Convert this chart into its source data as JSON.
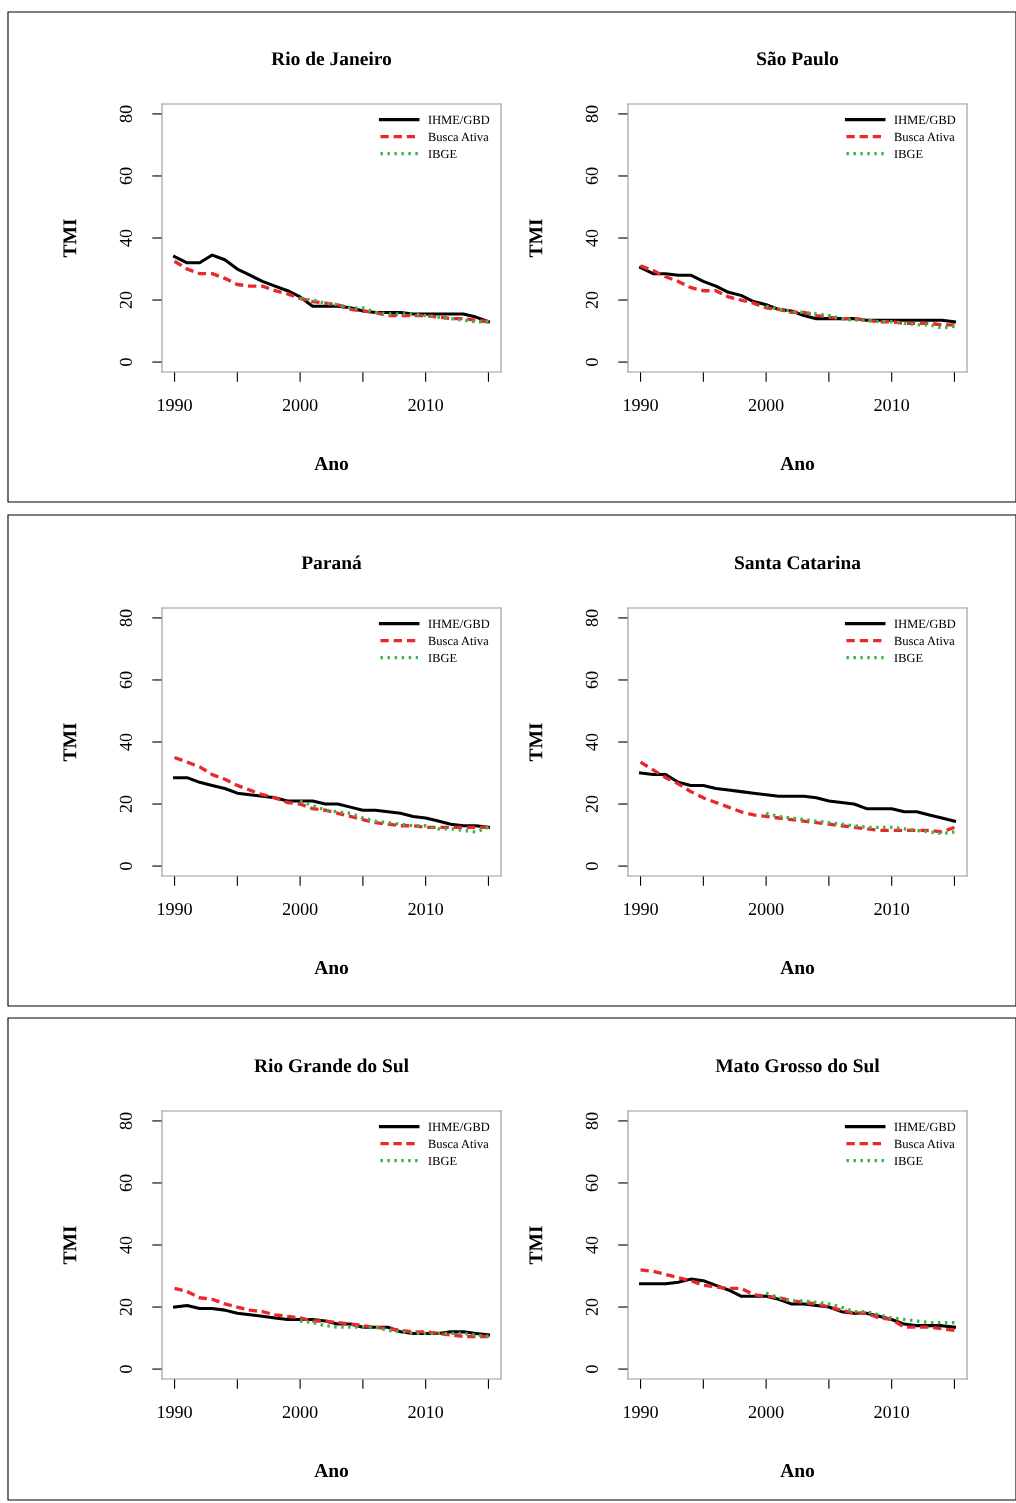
{
  "chart_data": [
    {
      "type": "line",
      "title": "Rio de Janeiro",
      "xlabel": "Ano",
      "ylabel": "TMI",
      "xlim": [
        1989,
        2016
      ],
      "ylim": [
        -3.2,
        83.2
      ],
      "xticks": [
        1990,
        {
          "value": 1995,
          "label": null
        },
        2000,
        {
          "value": 2005,
          "label": null
        },
        2010,
        {
          "value": 2015,
          "label": null
        }
      ],
      "yticks": [
        0,
        20,
        40,
        60,
        80
      ],
      "legend": "top right",
      "grid": false,
      "x": [
        1990,
        1991,
        1992,
        1993,
        1994,
        1995,
        1996,
        1997,
        1998,
        1999,
        2000,
        2001,
        2002,
        2003,
        2004,
        2005,
        2006,
        2007,
        2008,
        2009,
        2010,
        2011,
        2012,
        2013,
        2014,
        2015
      ],
      "series": [
        {
          "name": "IHME/GBD",
          "color": "#000000",
          "line_style": "solid",
          "values": [
            34,
            32,
            32,
            34.5,
            33,
            30,
            28,
            26,
            24.5,
            23,
            21,
            18,
            18,
            18,
            17.5,
            16.5,
            16,
            16,
            16,
            15.5,
            15.5,
            15.5,
            15.5,
            15.5,
            14.5,
            13
          ]
        },
        {
          "name": "Busca Ativa",
          "color": "#e8282a",
          "line_style": "dashed",
          "values": [
            32.5,
            30,
            28.5,
            28.5,
            27,
            25,
            24.5,
            24.5,
            23,
            22,
            20.5,
            19.5,
            19,
            18.5,
            17,
            16.5,
            16,
            15,
            15,
            15,
            15,
            14.5,
            14,
            14,
            13.5,
            13
          ]
        },
        {
          "name": "IBGE",
          "color": "#3cb44b",
          "line_style": "dotted",
          "x": [
            2000,
            2001,
            2002,
            2003,
            2004,
            2005,
            2006,
            2007,
            2008,
            2009,
            2010,
            2011,
            2012,
            2013,
            2014,
            2015
          ],
          "values": [
            20.5,
            20,
            19,
            18.5,
            17.5,
            17.5,
            16,
            15.5,
            15.5,
            15.5,
            15,
            14.5,
            14,
            13.5,
            13,
            13
          ]
        }
      ]
    },
    {
      "type": "line",
      "title": "São Paulo",
      "xlabel": "Ano",
      "ylabel": "TMI",
      "xlim": [
        1989,
        2016
      ],
      "ylim": [
        -3.2,
        83.2
      ],
      "xticks": [
        1990,
        {
          "value": 1995,
          "label": null
        },
        2000,
        {
          "value": 2005,
          "label": null
        },
        2010,
        {
          "value": 2015,
          "label": null
        }
      ],
      "yticks": [
        0,
        20,
        40,
        60,
        80
      ],
      "legend": "top right",
      "grid": false,
      "x": [
        1990,
        1991,
        1992,
        1993,
        1994,
        1995,
        1996,
        1997,
        1998,
        1999,
        2000,
        2001,
        2002,
        2003,
        2004,
        2005,
        2006,
        2007,
        2008,
        2009,
        2010,
        2011,
        2012,
        2013,
        2014,
        2015
      ],
      "series": [
        {
          "name": "IHME/GBD",
          "color": "#000000",
          "line_style": "solid",
          "values": [
            30.5,
            28.5,
            28.5,
            28,
            28,
            26,
            24.5,
            22.5,
            21.5,
            19.5,
            18.5,
            17,
            16.5,
            15,
            14,
            14,
            14,
            14,
            13.5,
            13.5,
            13.5,
            13.5,
            13.5,
            13.5,
            13.5,
            13
          ]
        },
        {
          "name": "Busca Ativa",
          "color": "#e8282a",
          "line_style": "dashed",
          "values": [
            31,
            29.5,
            27.5,
            26,
            24,
            23,
            23,
            21,
            20,
            19,
            17.5,
            17,
            16,
            16,
            15,
            14.5,
            14,
            14,
            13.5,
            13,
            13,
            12.5,
            12.5,
            12.5,
            12,
            12
          ]
        },
        {
          "name": "IBGE",
          "color": "#3cb44b",
          "line_style": "dotted",
          "x": [
            2000,
            2001,
            2002,
            2003,
            2004,
            2005,
            2006,
            2007,
            2008,
            2009,
            2010,
            2011,
            2012,
            2013,
            2014,
            2015
          ],
          "values": [
            18,
            17,
            16.5,
            16,
            15.5,
            15,
            14,
            13.5,
            13.5,
            13,
            13,
            12.5,
            12,
            12,
            11,
            11.5
          ]
        }
      ]
    },
    {
      "type": "line",
      "title": "Paraná",
      "xlabel": "Ano",
      "ylabel": "TMI",
      "xlim": [
        1989,
        2016
      ],
      "ylim": [
        -3.2,
        83.2
      ],
      "xticks": [
        1990,
        {
          "value": 1995,
          "label": null
        },
        2000,
        {
          "value": 2005,
          "label": null
        },
        2010,
        {
          "value": 2015,
          "label": null
        }
      ],
      "yticks": [
        0,
        20,
        40,
        60,
        80
      ],
      "legend": "top right",
      "grid": false,
      "x": [
        1990,
        1991,
        1992,
        1993,
        1994,
        1995,
        1996,
        1997,
        1998,
        1999,
        2000,
        2001,
        2002,
        2003,
        2004,
        2005,
        2006,
        2007,
        2008,
        2009,
        2010,
        2011,
        2012,
        2013,
        2014,
        2015
      ],
      "series": [
        {
          "name": "IHME/GBD",
          "color": "#000000",
          "line_style": "solid",
          "values": [
            28.5,
            28.5,
            27,
            26,
            25,
            23.5,
            23,
            22.5,
            22,
            21,
            21,
            21,
            20,
            20,
            19,
            18,
            18,
            17.5,
            17,
            16,
            15.5,
            14.5,
            13.5,
            13,
            13,
            12.5
          ]
        },
        {
          "name": "Busca Ativa",
          "color": "#e8282a",
          "line_style": "dashed",
          "values": [
            35,
            33.5,
            32,
            29.5,
            28,
            26,
            24.5,
            23,
            22,
            20.5,
            20,
            18.5,
            18,
            17,
            16,
            15,
            14,
            13.5,
            13,
            13,
            12.5,
            12.5,
            12.5,
            12.5,
            12.5,
            12.5
          ]
        },
        {
          "name": "IBGE",
          "color": "#3cb44b",
          "line_style": "dotted",
          "x": [
            2000,
            2001,
            2002,
            2003,
            2004,
            2005,
            2006,
            2007,
            2008,
            2009,
            2010,
            2011,
            2012,
            2013,
            2014,
            2015
          ],
          "values": [
            21,
            19.5,
            18,
            17.5,
            17,
            15.5,
            14.5,
            14,
            13.5,
            13,
            13,
            12,
            12,
            11.5,
            11,
            12.5
          ]
        }
      ]
    },
    {
      "type": "line",
      "title": "Santa Catarina",
      "xlabel": "Ano",
      "ylabel": "TMI",
      "xlim": [
        1989,
        2016
      ],
      "ylim": [
        -3.2,
        83.2
      ],
      "xticks": [
        1990,
        {
          "value": 1995,
          "label": null
        },
        2000,
        {
          "value": 2005,
          "label": null
        },
        2010,
        {
          "value": 2015,
          "label": null
        }
      ],
      "yticks": [
        0,
        20,
        40,
        60,
        80
      ],
      "legend": "top right",
      "grid": false,
      "x": [
        1990,
        1991,
        1992,
        1993,
        1994,
        1995,
        1996,
        1997,
        1998,
        1999,
        2000,
        2001,
        2002,
        2003,
        2004,
        2005,
        2006,
        2007,
        2008,
        2009,
        2010,
        2011,
        2012,
        2013,
        2014,
        2015
      ],
      "series": [
        {
          "name": "IHME/GBD",
          "color": "#000000",
          "line_style": "solid",
          "values": [
            30,
            29.5,
            29.5,
            27,
            26,
            26,
            25,
            24.5,
            24,
            23.5,
            23,
            22.5,
            22.5,
            22.5,
            22,
            21,
            20.5,
            20,
            18.5,
            18.5,
            18.5,
            17.5,
            17.5,
            16.5,
            15.5,
            14.5
          ]
        },
        {
          "name": "Busca Ativa",
          "color": "#e8282a",
          "line_style": "dashed",
          "values": [
            33.5,
            31,
            28.5,
            26.5,
            24,
            22,
            20.5,
            19,
            17.5,
            16.5,
            16,
            15.5,
            15,
            14.5,
            14,
            13.5,
            13,
            12.5,
            12,
            11.5,
            11.5,
            11.5,
            11.5,
            11.5,
            11,
            12.5
          ]
        },
        {
          "name": "IBGE",
          "color": "#3cb44b",
          "line_style": "dotted",
          "x": [
            2000,
            2001,
            2002,
            2003,
            2004,
            2005,
            2006,
            2007,
            2008,
            2009,
            2010,
            2011,
            2012,
            2013,
            2014,
            2015
          ],
          "values": [
            17,
            16,
            15.5,
            15,
            14.5,
            14,
            13.5,
            13,
            12.5,
            12.5,
            12.5,
            12,
            11.5,
            11,
            10.5,
            11
          ]
        }
      ]
    },
    {
      "type": "line",
      "title": "Rio Grande do Sul",
      "xlabel": "Ano",
      "ylabel": "TMI",
      "xlim": [
        1989,
        2016
      ],
      "ylim": [
        -3.2,
        83.2
      ],
      "xticks": [
        1990,
        {
          "value": 1995,
          "label": null
        },
        2000,
        {
          "value": 2005,
          "label": null
        },
        2010,
        {
          "value": 2015,
          "label": null
        }
      ],
      "yticks": [
        0,
        20,
        40,
        60,
        80
      ],
      "legend": "top right",
      "grid": false,
      "x": [
        1990,
        1991,
        1992,
        1993,
        1994,
        1995,
        1996,
        1997,
        1998,
        1999,
        2000,
        2001,
        2002,
        2003,
        2004,
        2005,
        2006,
        2007,
        2008,
        2009,
        2010,
        2011,
        2012,
        2013,
        2014,
        2015
      ],
      "series": [
        {
          "name": "IHME/GBD",
          "color": "#000000",
          "line_style": "solid",
          "values": [
            20,
            20.5,
            19.5,
            19.5,
            19,
            18,
            17.5,
            17,
            16.5,
            16,
            16,
            16,
            15.5,
            14.5,
            14.5,
            13.5,
            13.5,
            13.5,
            12,
            11.5,
            11.5,
            11.5,
            12,
            12,
            11.5,
            11
          ]
        },
        {
          "name": "Busca Ativa",
          "color": "#e8282a",
          "line_style": "dashed",
          "values": [
            26,
            25,
            23,
            22.5,
            21,
            20,
            19,
            18.5,
            17.5,
            17,
            16.5,
            15.5,
            15.5,
            15,
            14.5,
            14,
            13.5,
            13,
            12.5,
            12,
            12,
            11.5,
            11,
            10.5,
            10.5,
            10.5
          ]
        },
        {
          "name": "IBGE",
          "color": "#3cb44b",
          "line_style": "dotted",
          "x": [
            2000,
            2001,
            2002,
            2003,
            2004,
            2005,
            2006,
            2007,
            2008,
            2009,
            2010,
            2011,
            2012,
            2013,
            2014,
            2015
          ],
          "values": [
            15.5,
            15,
            14,
            13.5,
            13.5,
            13.5,
            13.5,
            12.5,
            12,
            11.5,
            11.5,
            11.5,
            11.5,
            11.5,
            11,
            10.5
          ]
        }
      ]
    },
    {
      "type": "line",
      "title": "Mato Grosso do Sul",
      "xlabel": "Ano",
      "ylabel": "TMI",
      "xlim": [
        1989,
        2016
      ],
      "ylim": [
        -3.2,
        83.2
      ],
      "xticks": [
        1990,
        {
          "value": 1995,
          "label": null
        },
        2000,
        {
          "value": 2005,
          "label": null
        },
        2010,
        {
          "value": 2015,
          "label": null
        }
      ],
      "yticks": [
        0,
        20,
        40,
        60,
        80
      ],
      "legend": "top right",
      "grid": false,
      "x": [
        1990,
        1991,
        1992,
        1993,
        1994,
        1995,
        1996,
        1997,
        1998,
        1999,
        2000,
        2001,
        2002,
        2003,
        2004,
        2005,
        2006,
        2007,
        2008,
        2009,
        2010,
        2011,
        2012,
        2013,
        2014,
        2015
      ],
      "series": [
        {
          "name": "IHME/GBD",
          "color": "#000000",
          "line_style": "solid",
          "values": [
            27.5,
            27.5,
            27.5,
            28,
            29,
            28.5,
            27,
            25.5,
            23.5,
            23.5,
            23.5,
            22.5,
            21,
            21,
            20.5,
            20,
            18.5,
            18,
            18,
            17,
            16,
            14.5,
            14,
            14,
            14,
            13.5
          ]
        },
        {
          "name": "Busca Ativa",
          "color": "#e8282a",
          "line_style": "dashed",
          "values": [
            32,
            31.5,
            30.5,
            29.5,
            28.5,
            27,
            26.5,
            26,
            26,
            24,
            23.5,
            23,
            22,
            21.5,
            21,
            20,
            19,
            18,
            18,
            16.5,
            16,
            13.5,
            13.5,
            13.5,
            13,
            12.5
          ]
        },
        {
          "name": "IBGE",
          "color": "#3cb44b",
          "line_style": "dotted",
          "x": [
            2000,
            2001,
            2002,
            2003,
            2004,
            2005,
            2006,
            2007,
            2008,
            2009,
            2010,
            2011,
            2012,
            2013,
            2014,
            2015
          ],
          "values": [
            24.5,
            23,
            22,
            22,
            21.5,
            21,
            20,
            18.5,
            18.5,
            17.5,
            16.5,
            16,
            15.5,
            15,
            15,
            15
          ]
        }
      ]
    }
  ]
}
